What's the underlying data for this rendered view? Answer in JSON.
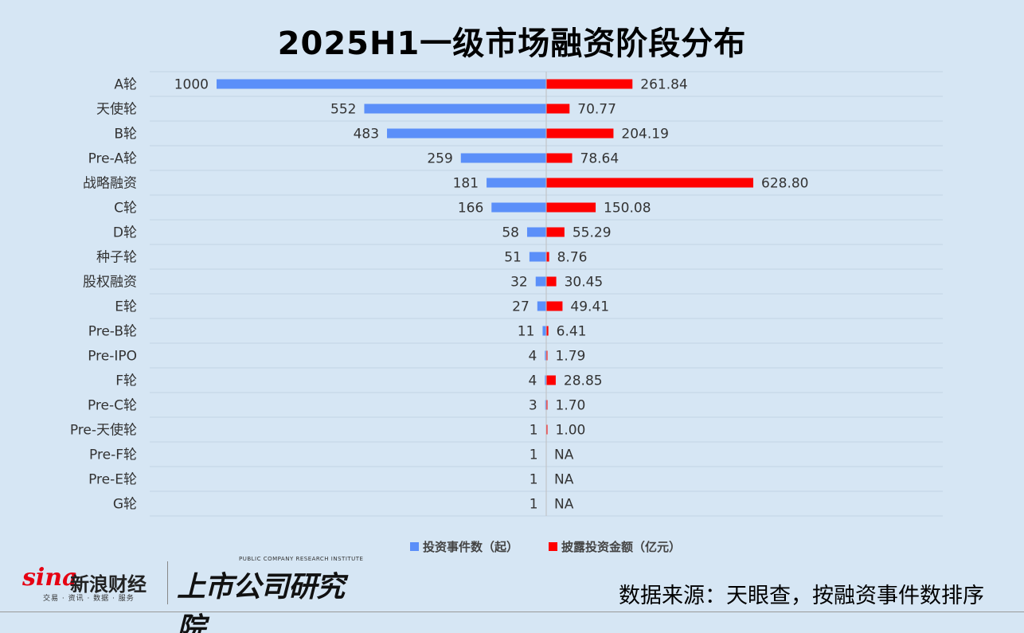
{
  "title": "2025H1一级市场融资阶段分布",
  "chart_data": {
    "type": "bar",
    "orientation": "horizontal-diverging",
    "categories": [
      "A轮",
      "天使轮",
      "B轮",
      "Pre-A轮",
      "战略融资",
      "C轮",
      "D轮",
      "种子轮",
      "股权融资",
      "E轮",
      "Pre-B轮",
      "Pre-IPO",
      "F轮",
      "Pre-C轮",
      "Pre-天使轮",
      "Pre-F轮",
      "Pre-E轮",
      "G轮"
    ],
    "series": [
      {
        "name": "投资事件数（起）",
        "color": "#5b8ff9",
        "values": [
          1000,
          552,
          483,
          259,
          181,
          166,
          58,
          51,
          32,
          27,
          11,
          4,
          4,
          3,
          1,
          1,
          1,
          1
        ],
        "labels": [
          "1000",
          "552",
          "483",
          "259",
          "181",
          "166",
          "58",
          "51",
          "32",
          "27",
          "11",
          "4",
          "4",
          "3",
          "1",
          "1",
          "1",
          "1"
        ]
      },
      {
        "name": "披露投资金额（亿元）",
        "color": "#ff0000",
        "values": [
          261.84,
          70.77,
          204.19,
          78.64,
          628.8,
          150.08,
          55.29,
          8.76,
          30.45,
          49.41,
          6.41,
          1.79,
          28.85,
          1.7,
          1.0,
          null,
          null,
          null
        ],
        "labels": [
          "261.84",
          "70.77",
          "204.19",
          "78.64",
          "628.80",
          "150.08",
          "55.29",
          "8.76",
          "30.45",
          "49.41",
          "6.41",
          "1.79",
          "28.85",
          "1.70",
          "1.00",
          "NA",
          "NA",
          "NA"
        ]
      }
    ],
    "legend_position": "bottom",
    "grid": "horizontal"
  },
  "footer": {
    "source": "数据来源：天眼查，按融资事件数排序",
    "sina_logo_text": "sina",
    "sina_name": "新浪财经",
    "sina_tagline": "交易 · 资讯 · 数据 · 服务",
    "institute_en": "PUBLIC COMPANY RESEARCH INSTITUTE",
    "institute_cn": "上市公司研究院"
  }
}
